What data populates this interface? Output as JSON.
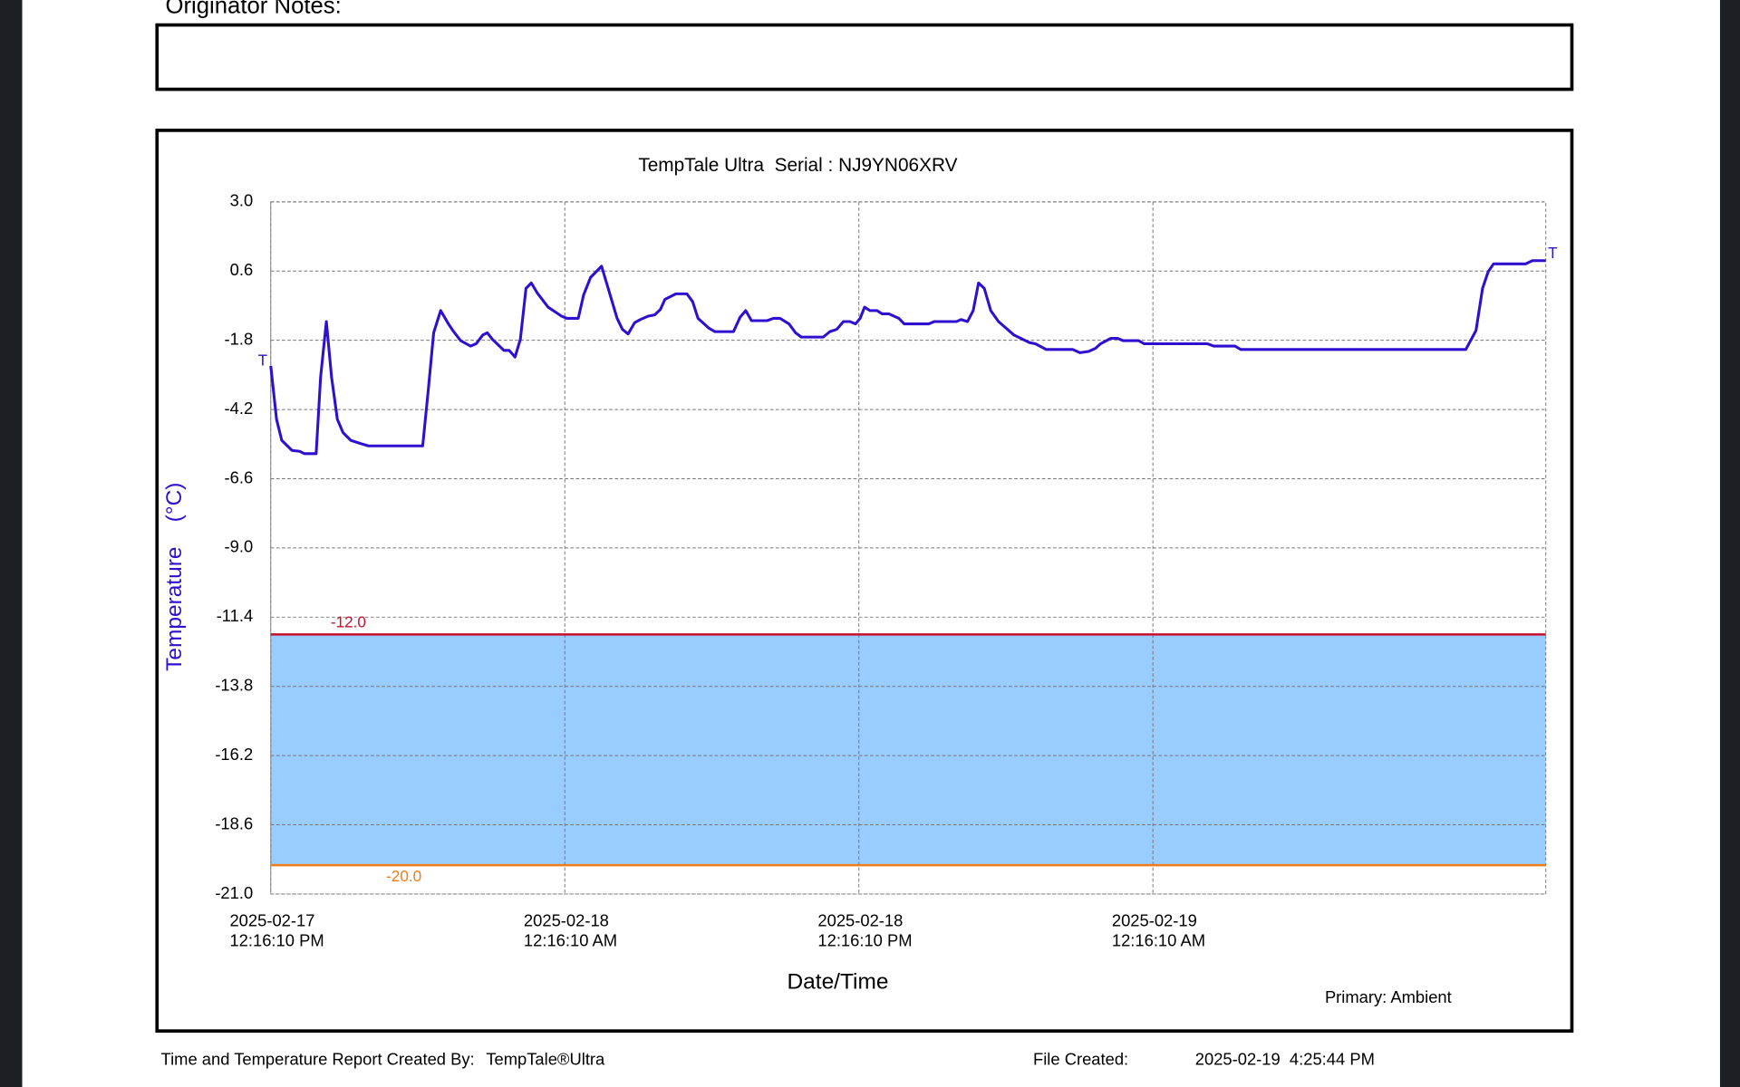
{
  "originator_notes_label": "Originator Notes:",
  "chart_data": {
    "type": "line",
    "title": "TempTale Ultra  Serial : NJ9YN06XRV",
    "xlabel": "Date/Time",
    "ylabel": "Temperature    (°C)",
    "ylim": [
      -21,
      3
    ],
    "yticks": [
      {
        "value": 3,
        "label": "3.0"
      },
      0.6,
      -1.8,
      -4.2,
      -6.6,
      {
        "value": -9,
        "label": "-9.0"
      },
      -11.4,
      -13.8,
      -16.2,
      -18.6,
      {
        "value": -21,
        "label": "-21.0"
      }
    ],
    "xlim": [
      "2025-02-17T12:16:10",
      "2025-02-19T16:18:10"
    ],
    "xticks": [
      {
        "value": "2025-02-17T12:16:10",
        "label": "2025-02-17\n12:16:10 PM"
      },
      {
        "value": "2025-02-18T00:16:10",
        "label": "2025-02-18\n12:16:10 AM"
      },
      {
        "value": "2025-02-18T12:16:10",
        "label": "2025-02-18\n12:16:10 PM"
      },
      {
        "value": "2025-02-19T00:16:10",
        "label": "2025-02-19\n12:16:10 AM"
      }
    ],
    "grid": true,
    "thresholds": [
      {
        "value": -12,
        "label": "-12.0",
        "color": "#c8102e"
      },
      {
        "value": -20,
        "label": "-20.0",
        "color": "#f07d1a"
      }
    ],
    "band_color": "#99ccff",
    "trip_markers": [
      "T",
      "T"
    ],
    "x": [
      "2025-02-17T12:16:10",
      "2025-02-17T12:30:10",
      "2025-02-17T12:43:10",
      "2025-02-17T13:08:10",
      "2025-02-17T13:27:10",
      "2025-02-17T13:38:10",
      "2025-02-17T14:07:10",
      "2025-02-17T14:18:10",
      "2025-02-17T14:32:10",
      "2025-02-17T14:45:10",
      "2025-02-17T14:59:10",
      "2025-02-17T15:13:10",
      "2025-02-17T15:32:10",
      "2025-02-17T15:56:10",
      "2025-02-17T16:15:10",
      "2025-02-17T18:28:10",
      "2025-02-17T18:42:10",
      "2025-02-17T18:55:10",
      "2025-02-17T19:12:10",
      "2025-02-17T19:31:10",
      "2025-02-17T19:42:10",
      "2025-02-17T20:01:10",
      "2025-02-17T20:25:10",
      "2025-02-17T20:39:10",
      "2025-02-17T20:55:10",
      "2025-02-17T21:06:10",
      "2025-02-17T21:19:10",
      "2025-02-17T21:47:10",
      "2025-02-17T22:00:10",
      "2025-02-17T22:14:10",
      "2025-02-17T22:27:10",
      "2025-02-17T22:41:10",
      "2025-02-17T22:54:10",
      "2025-02-17T23:08:10",
      "2025-02-17T23:35:10",
      "2025-02-18T00:08:10",
      "2025-02-18T00:21:10",
      "2025-02-18T00:49:10",
      "2025-02-18T01:02:10",
      "2025-02-18T01:19:10",
      "2025-02-18T01:46:10",
      "2025-02-18T01:59:10",
      "2025-02-18T02:24:10",
      "2025-02-18T02:37:10",
      "2025-02-18T02:51:10",
      "2025-02-18T03:07:10",
      "2025-02-18T03:21:10",
      "2025-02-18T03:40:10",
      "2025-02-18T03:56:10",
      "2025-02-18T04:10:10",
      "2025-02-18T04:21:10",
      "2025-02-18T04:48:10",
      "2025-02-18T05:15:10",
      "2025-02-18T05:29:10",
      "2025-02-18T05:42:10",
      "2025-02-18T06:09:10",
      "2025-02-18T06:23:10",
      "2025-02-18T07:09:10",
      "2025-02-18T07:25:10",
      "2025-02-18T07:39:10",
      "2025-02-18T07:53:10",
      "2025-02-18T08:31:10",
      "2025-02-18T08:47:10",
      "2025-02-18T09:03:10",
      "2025-02-18T09:25:10",
      "2025-02-18T09:41:10",
      "2025-02-18T09:55:10",
      "2025-02-18T10:49:10",
      "2025-02-18T11:05:10",
      "2025-02-18T11:22:10",
      "2025-02-18T11:38:10",
      "2025-02-18T11:54:10",
      "2025-02-18T12:08:10",
      "2025-02-18T12:19:10",
      "2025-02-18T12:30:10",
      "2025-02-18T12:43:10",
      "2025-02-18T13:00:10",
      "2025-02-18T13:13:10",
      "2025-02-18T13:29:10",
      "2025-02-18T13:54:10",
      "2025-02-18T14:07:10",
      "2025-02-18T15:07:10",
      "2025-02-18T15:21:10",
      "2025-02-18T16:15:10",
      "2025-02-18T16:26:10",
      "2025-02-18T16:42:10",
      "2025-02-18T16:56:10",
      "2025-02-18T17:09:10",
      "2025-02-18T17:23:10",
      "2025-02-18T17:39:10",
      "2025-02-18T17:58:10",
      "2025-02-18T18:36:10",
      "2025-02-18T19:14:10",
      "2025-02-18T19:28:10",
      "2025-02-18T19:55:10",
      "2025-02-18T21:00:10",
      "2025-02-18T21:17:10",
      "2025-02-18T21:38:10",
      "2025-02-18T21:55:10",
      "2025-02-18T22:08:10",
      "2025-02-18T22:33:10",
      "2025-02-18T22:49:10",
      "2025-02-18T23:03:10",
      "2025-02-18T23:41:10",
      "2025-02-18T23:54:10",
      "2025-02-19T02:29:10",
      "2025-02-19T02:45:10",
      "2025-02-19T03:37:10",
      "2025-02-19T03:51:10",
      "2025-02-19T13:02:10",
      "2025-02-19T13:27:10",
      "2025-02-19T13:43:10",
      "2025-02-19T13:57:10",
      "2025-02-19T14:10:10",
      "2025-02-19T15:29:10",
      "2025-02-19T15:45:10",
      "2025-02-19T16:18:10"
    ],
    "series": [
      {
        "name": "Primary: Ambient",
        "color": "#3010d0",
        "values": [
          -2.69,
          -4.54,
          -5.27,
          -5.62,
          -5.65,
          -5.73,
          -5.73,
          -3.08,
          -1.15,
          -3.08,
          -4.54,
          -5.0,
          -5.27,
          -5.38,
          -5.46,
          -5.46,
          -3.46,
          -1.54,
          -0.77,
          -1.23,
          -1.46,
          -1.81,
          -2.0,
          -1.92,
          -1.62,
          -1.54,
          -1.77,
          -2.15,
          -2.15,
          -2.38,
          -1.77,
          0.0,
          0.19,
          -0.15,
          -0.65,
          -0.96,
          -1.04,
          -1.04,
          -0.23,
          0.38,
          0.77,
          0.15,
          -1.04,
          -1.42,
          -1.58,
          -1.19,
          -1.08,
          -0.96,
          -0.92,
          -0.73,
          -0.38,
          -0.19,
          -0.19,
          -0.46,
          -1.04,
          -1.38,
          -1.5,
          -1.5,
          -1.0,
          -0.77,
          -1.12,
          -1.12,
          -1.04,
          -1.04,
          -1.23,
          -1.54,
          -1.69,
          -1.69,
          -1.5,
          -1.42,
          -1.15,
          -1.15,
          -1.23,
          -1.04,
          -0.65,
          -0.77,
          -0.77,
          -0.88,
          -0.88,
          -1.04,
          -1.23,
          -1.23,
          -1.15,
          -1.15,
          -1.08,
          -1.15,
          -0.77,
          0.19,
          0.0,
          -0.77,
          -1.15,
          -1.62,
          -1.88,
          -1.92,
          -2.12,
          -2.12,
          -2.23,
          -2.19,
          -2.08,
          -1.92,
          -1.73,
          -1.73,
          -1.81,
          -1.81,
          -1.92,
          -1.92,
          -2.0,
          -2.0,
          -2.12,
          -2.12,
          -1.46,
          0.0,
          0.58,
          0.85,
          0.85,
          0.96,
          0.96
        ]
      }
    ]
  },
  "footer": {
    "created_by_label": "Time and Temperature Report Created By:",
    "created_by": "TempTale®Ultra",
    "file_created_label": "File Created:",
    "file_created": "2025-02-19  4:25:44 PM"
  }
}
